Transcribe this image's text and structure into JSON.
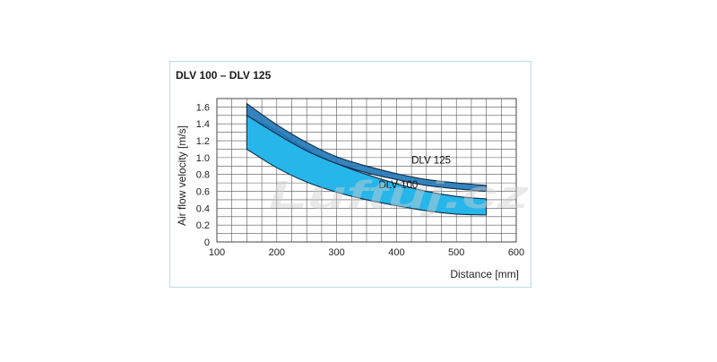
{
  "chart_data": {
    "type": "area",
    "title": "DLV 100 – DLV 125",
    "xlabel": "Distance [mm]",
    "ylabel": "Air flow velocity [m/s]",
    "xlim": [
      100,
      600
    ],
    "ylim": [
      0,
      1.7
    ],
    "xticks": [
      100,
      200,
      300,
      400,
      500,
      600
    ],
    "yticks": [
      0,
      0.2,
      0.4,
      0.6,
      0.8,
      1.0,
      1.2,
      1.4,
      1.6
    ],
    "grid": true,
    "x": [
      150,
      200,
      250,
      300,
      350,
      400,
      450,
      500,
      550
    ],
    "series": [
      {
        "name": "DLV 125",
        "color": "#2479b8",
        "label_x": 425,
        "label_y": 0.93,
        "upper": [
          1.64,
          1.39,
          1.18,
          1.01,
          0.9,
          0.81,
          0.74,
          0.7,
          0.67
        ],
        "lower": [
          1.5,
          1.28,
          1.08,
          0.93,
          0.82,
          0.74,
          0.67,
          0.63,
          0.6
        ]
      },
      {
        "name": "DLV 100",
        "color": "#27b6ea",
        "label_x": 370,
        "label_y": 0.64,
        "upper": [
          1.5,
          1.32,
          1.1,
          0.93,
          0.8,
          0.69,
          0.6,
          0.54,
          0.51
        ],
        "lower": [
          1.1,
          0.88,
          0.71,
          0.59,
          0.5,
          0.43,
          0.37,
          0.33,
          0.32
        ]
      }
    ]
  },
  "watermark": "Luftuj.cz"
}
